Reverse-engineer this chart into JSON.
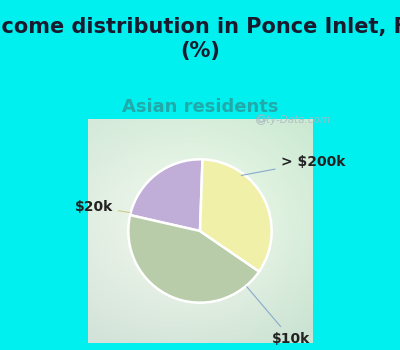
{
  "title": "Income distribution in Ponce Inlet, FL\n(%)",
  "subtitle": "Asian residents",
  "title_fontsize": 15,
  "subtitle_fontsize": 13,
  "slices": [
    {
      "label": "> $200k",
      "value": 22,
      "color": "#c0aed8"
    },
    {
      "label": "$10k",
      "value": 44,
      "color": "#b8ccaa"
    },
    {
      "label": "$20k",
      "value": 34,
      "color": "#f0f0a8"
    }
  ],
  "bg_outer": "#00f0f0",
  "watermark": "City-Data.com",
  "label_fontsize": 10,
  "startangle": 88,
  "title_color": "#1a1a2e",
  "subtitle_color": "#22aaaa"
}
